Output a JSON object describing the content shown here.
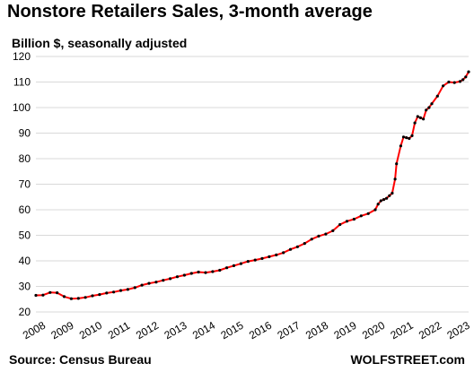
{
  "chart_data": {
    "type": "line",
    "title": "Nonstore Retailers Sales, 3-month average",
    "subtitle": "Billion $, seasonally adjusted",
    "source": "Source: Census Bureau",
    "brand": "WOLFSTREET.com",
    "ylim": [
      20,
      120
    ],
    "yticks": [
      "20",
      "30",
      "40",
      "50",
      "60",
      "70",
      "80",
      "90",
      "100",
      "110",
      "120"
    ],
    "xlim": [
      2008,
      2023.3
    ],
    "xticks": [
      "2008",
      "2009",
      "2010",
      "2011",
      "2012",
      "2013",
      "2014",
      "2015",
      "2016",
      "2017",
      "2018",
      "2019",
      "2020",
      "2021",
      "2022",
      "2023"
    ],
    "grid": "horizontal",
    "colors": {
      "line": "#ff0000",
      "markers": "#000000",
      "grid": "#d9d9d9"
    },
    "series": [
      {
        "x": [
          2008.0,
          2008.25,
          2008.5,
          2008.75,
          2009.0,
          2009.25,
          2009.5,
          2009.75,
          2010.0,
          2010.25,
          2010.5,
          2010.75,
          2011.0,
          2011.25,
          2011.5,
          2011.75,
          2012.0,
          2012.25,
          2012.5,
          2012.75,
          2013.0,
          2013.25,
          2013.5,
          2013.75,
          2014.0,
          2014.25,
          2014.5,
          2014.75,
          2015.0,
          2015.25,
          2015.5,
          2015.75,
          2016.0,
          2016.25,
          2016.5,
          2016.75,
          2017.0,
          2017.25,
          2017.5,
          2017.75,
          2018.0,
          2018.25,
          2018.5,
          2018.75,
          2019.0,
          2019.25,
          2019.5,
          2019.75,
          2020.0,
          2020.1,
          2020.2,
          2020.3,
          2020.4,
          2020.5,
          2020.6,
          2020.7,
          2020.75,
          2020.9,
          2021.0,
          2021.1,
          2021.2,
          2021.3,
          2021.4,
          2021.5,
          2021.6,
          2021.7,
          2021.8,
          2021.9,
          2022.0,
          2022.2,
          2022.4,
          2022.6,
          2022.8,
          2023.0,
          2023.1,
          2023.2,
          2023.3
        ],
        "y": [
          26.5,
          26.6,
          27.6,
          27.5,
          26.0,
          25.2,
          25.3,
          25.7,
          26.3,
          26.8,
          27.4,
          27.8,
          28.4,
          28.8,
          29.5,
          30.5,
          31.2,
          31.7,
          32.4,
          33.0,
          33.8,
          34.4,
          35.1,
          35.6,
          35.4,
          35.8,
          36.3,
          37.3,
          38.1,
          38.9,
          39.8,
          40.3,
          40.9,
          41.6,
          42.3,
          43.2,
          44.5,
          45.5,
          46.8,
          48.5,
          49.7,
          50.5,
          51.8,
          54.2,
          55.5,
          56.3,
          57.6,
          58.5,
          60.0,
          62.2,
          63.5,
          64.0,
          64.5,
          65.5,
          66.5,
          72.0,
          78.0,
          85.0,
          88.5,
          88.2,
          87.9,
          89.0,
          94.0,
          96.5,
          96.0,
          95.5,
          99.0,
          100.0,
          101.5,
          104.5,
          108.5,
          110.0,
          109.8,
          110.2,
          110.9,
          112.0,
          114.0
        ]
      }
    ]
  }
}
